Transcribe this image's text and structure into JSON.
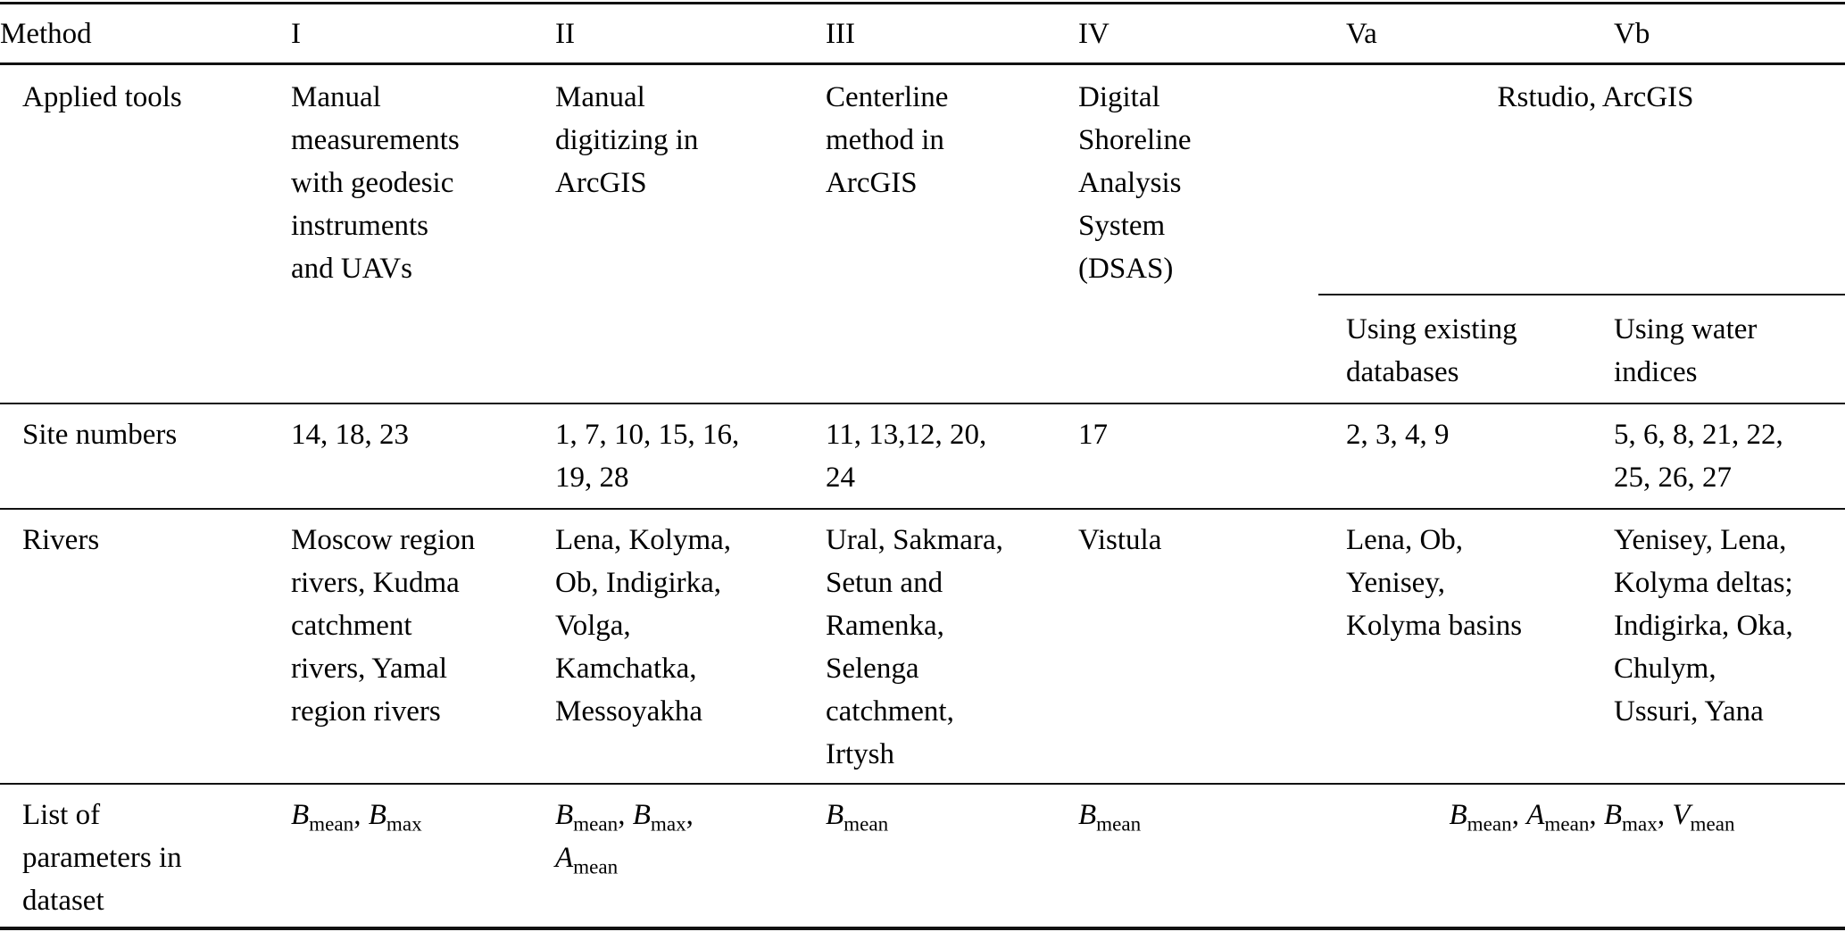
{
  "table": {
    "columns": {
      "method": "Method",
      "numerals": [
        "I",
        "II",
        "III",
        "IV",
        "Va",
        "Vb"
      ]
    },
    "applied_tools": {
      "label": "Applied tools",
      "i": "Manual\nmeasurements\nwith geodesic\ninstruments\nand UAVs",
      "ii": "Manual\ndigitizing in\nArcGIS",
      "iii": "Centerline\nmethod in\nArcGIS",
      "iv": "Digital\nShoreline\nAnalysis\nSystem\n(DSAS)",
      "v_combined": "Rstudio, ArcGIS",
      "va_subheader": "Using existing\ndatabases",
      "vb_subheader": "Using water\nindices"
    },
    "site_numbers": {
      "label": "Site numbers",
      "i": "14, 18, 23",
      "ii": "1, 7, 10, 15, 16,\n19, 28",
      "iii": "11, 13,12, 20,\n24",
      "iv": "17",
      "va": "2, 3, 4, 9",
      "vb": "5, 6, 8, 21, 22,\n25, 26, 27"
    },
    "rivers": {
      "label": "Rivers",
      "i": "Moscow region\nrivers, Kudma\ncatchment\nrivers, Yamal\nregion rivers",
      "ii": "Lena, Kolyma,\nOb, Indigirka,\nVolga,\nKamchatka,\nMessoyakha",
      "iii": "Ural, Sakmara,\nSetun and\nRamenka,\nSelenga\ncatchment,\nIrtysh",
      "iv": "Vistula",
      "va": "Lena, Ob,\nYenisey,\nKolyma basins",
      "vb": "Yenisey, Lena,\nKolyma deltas;\nIndigirka, Oka,\nChulym,\nUssuri, Yana"
    },
    "parameters": {
      "label": "List of\nparameters in\ndataset",
      "i": [
        {
          "v": "B",
          "s": "mean"
        },
        {
          "v": "B",
          "s": "max"
        }
      ],
      "ii": [
        {
          "v": "B",
          "s": "mean"
        },
        {
          "v": "B",
          "s": "max"
        },
        {
          "v": "A",
          "s": "mean",
          "br": true
        }
      ],
      "iii": [
        {
          "v": "B",
          "s": "mean"
        }
      ],
      "iv": [
        {
          "v": "B",
          "s": "mean"
        }
      ],
      "v_combined": [
        {
          "v": "B",
          "s": "mean"
        },
        {
          "v": "A",
          "s": "mean"
        },
        {
          "v": "B",
          "s": "max"
        },
        {
          "v": "V",
          "s": "mean"
        }
      ]
    }
  }
}
